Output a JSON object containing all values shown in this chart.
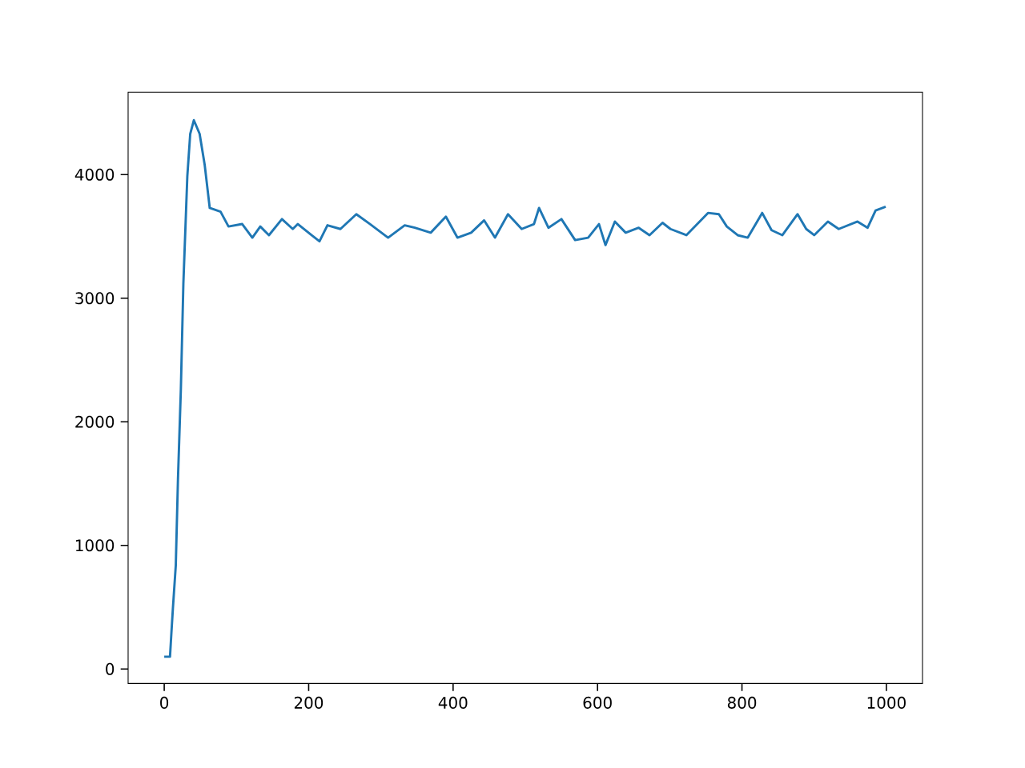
{
  "chart_data": {
    "type": "line",
    "xlim": [
      -50,
      1050
    ],
    "ylim": [
      -117,
      4667
    ],
    "xticks": [
      0,
      200,
      400,
      600,
      800,
      1000
    ],
    "yticks": [
      0,
      1000,
      2000,
      3000,
      4000
    ],
    "grid": false,
    "marker": "none",
    "line_style": "solid",
    "series": [
      {
        "color": "#1f77b4",
        "x": [
          0,
          8,
          10,
          12,
          16,
          19,
          23,
          26.5,
          32,
          36,
          41,
          49,
          56,
          63,
          78,
          89,
          108,
          122,
          133,
          145,
          163,
          178,
          185,
          204,
          215,
          226,
          244,
          266,
          285,
          310,
          333,
          347,
          369,
          390,
          406,
          425,
          443,
          458,
          476,
          495,
          512,
          519,
          532,
          550,
          569,
          587,
          602,
          611,
          624,
          639,
          657,
          672,
          690,
          701,
          723,
          753,
          768,
          779,
          794,
          808,
          828,
          841,
          856,
          877,
          889,
          900,
          919,
          934,
          960,
          974,
          985,
          999
        ],
        "values": [
          100,
          100,
          300,
          490,
          840,
          1530,
          2260,
          3120,
          3990,
          4330,
          4440,
          4330,
          4080,
          3730,
          3700,
          3580,
          3600,
          3490,
          3580,
          3510,
          3640,
          3560,
          3600,
          3510,
          3460,
          3590,
          3560,
          3680,
          3600,
          3490,
          3590,
          3570,
          3530,
          3660,
          3490,
          3530,
          3630,
          3490,
          3680,
          3560,
          3600,
          3730,
          3570,
          3640,
          3470,
          3490,
          3600,
          3430,
          3620,
          3530,
          3570,
          3510,
          3610,
          3560,
          3510,
          3690,
          3680,
          3580,
          3510,
          3490,
          3690,
          3550,
          3510,
          3680,
          3560,
          3510,
          3620,
          3560,
          3620,
          3570,
          3710,
          3740
        ]
      }
    ]
  }
}
